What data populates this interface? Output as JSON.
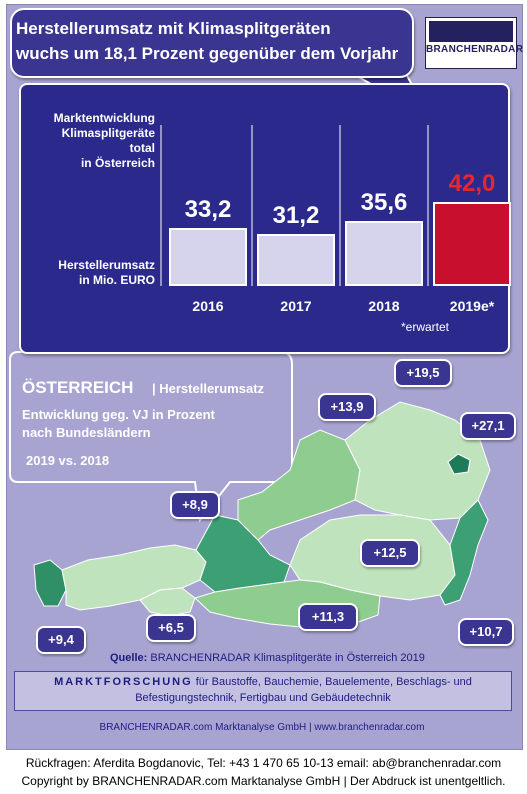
{
  "headline": {
    "line1": "Herstellerumsatz mit  Klimasplitgeräten",
    "line2": "wuchs um 18,1 Prozent gegenüber dem Vorjahr"
  },
  "logo": {
    "text": "BRANCHENRADAR"
  },
  "chart_data": {
    "type": "bar",
    "categories": [
      "2016",
      "2017",
      "2018",
      "2019e*"
    ],
    "values": [
      33.2,
      31.2,
      35.6,
      42.0
    ],
    "value_labels": [
      "33,2",
      "31,2",
      "35,6",
      "42,0"
    ],
    "title_lines": [
      "Marktentwicklung",
      "Klimasplitgeräte",
      "total",
      "in Österreich"
    ],
    "ylabel_lines": [
      "Herstellerumsatz",
      "in Mio. EURO"
    ],
    "note": "*erwartet",
    "colors": {
      "bar": "#d6d4ec",
      "highlight": "#c8102e",
      "highlight_label": "#e8262e",
      "background": "#2b2a8c"
    }
  },
  "map": {
    "title": "ÖSTERREICH",
    "subtitle": "| Herstellerumsatz",
    "description_lines": [
      "Entwicklung  geg. VJ in Prozent",
      "nach Bundesländern"
    ],
    "period": "2019  vs. 2018",
    "regions": [
      {
        "label": "+19,5"
      },
      {
        "label": "+13,9"
      },
      {
        "label": "+27,1"
      },
      {
        "label": "+8,9"
      },
      {
        "label": "+12,5"
      },
      {
        "label": "+9,4"
      },
      {
        "label": "+6,5"
      },
      {
        "label": "+11,3"
      },
      {
        "label": "+10,7"
      }
    ],
    "colors": {
      "light": "#bfe3bd",
      "mid": "#8fcc8f",
      "dark": "#3d9f74",
      "darkest": "#1f7a58"
    }
  },
  "source": {
    "prefix": "Quelle:",
    "text": " BRANCHENRADAR Klimasplitgeräte in Österreich 2019"
  },
  "marktforschung": {
    "line1_bold": "MARKTFORSCHUNG",
    "line1_rest": " für Baustoffe, Bauchemie, Bauelemente, Beschlags- und",
    "line2": "Befestigungstechnik, Fertigbau und Gebäudetechnik"
  },
  "footer": "BRANCHENRADAR.com Marktanalyse GmbH | www.branchenradar.com",
  "bottom": {
    "line1": "Rückfragen: Aferdita Bogdanovic, Tel: +43 1 470 65 10-13 email: ab@branchenradar.com",
    "line2": "Copyright by BRANCHENRADAR.com  Marktanalyse GmbH | Der Abdruck ist unentgeltlich."
  }
}
